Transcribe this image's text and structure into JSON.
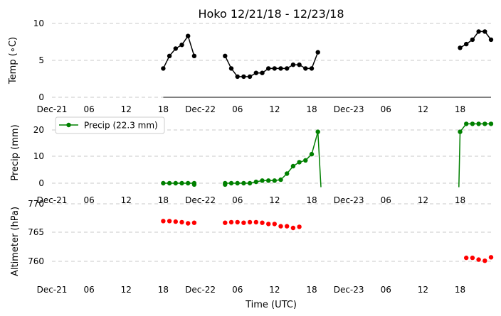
{
  "chart_data": {
    "type": "line",
    "title": "Hoko 12/21/18 - 12/23/18",
    "xlabel": "Time (UTC)",
    "x_tick_labels": [
      "Dec-21",
      "06",
      "12",
      "18",
      "Dec-22",
      "06",
      "12",
      "18",
      "Dec-23",
      "06",
      "12",
      "18"
    ],
    "xlim_hours": [
      0,
      71
    ],
    "grid": "horizontal dashed",
    "panels": [
      {
        "ylabel": "Temp (∘C)",
        "ylim": [
          0,
          10
        ],
        "yticks": [
          "0",
          "5",
          "10"
        ],
        "series": [
          {
            "color": "#000000",
            "segments": [
              [
                [
                  18,
                  3.9
                ],
                [
                  19,
                  5.6
                ],
                [
                  20,
                  6.6
                ],
                [
                  21,
                  7.1
                ],
                [
                  22,
                  8.3
                ],
                [
                  23,
                  5.6
                ]
              ],
              [
                [
                  28,
                  5.6
                ],
                [
                  29,
                  3.9
                ],
                [
                  30,
                  2.8
                ],
                [
                  31,
                  2.8
                ],
                [
                  32,
                  2.8
                ],
                [
                  33,
                  3.3
                ],
                [
                  34,
                  3.3
                ],
                [
                  35,
                  3.9
                ],
                [
                  36,
                  3.9
                ],
                [
                  37,
                  3.9
                ],
                [
                  38,
                  3.9
                ],
                [
                  39,
                  4.4
                ],
                [
                  40,
                  4.4
                ],
                [
                  41,
                  3.9
                ],
                [
                  42,
                  3.9
                ],
                [
                  43,
                  6.1
                ]
              ],
              [
                [
                  66,
                  6.7
                ],
                [
                  67,
                  7.2
                ],
                [
                  68,
                  7.8
                ],
                [
                  69,
                  8.9
                ],
                [
                  70,
                  8.9
                ],
                [
                  71,
                  7.8
                ]
              ]
            ]
          }
        ]
      },
      {
        "ylabel": "Precip (mm)",
        "ylim": [
          -1,
          25
        ],
        "yticks": [
          "0",
          "10",
          "20"
        ],
        "legend": "Precip (22.3 mm)",
        "legend_position": "upper-left",
        "series": [
          {
            "name": "Precip (22.3 mm)",
            "color": "#008000",
            "segments": [
              [
                [
                  18,
                  0.0
                ],
                [
                  19,
                  0.0
                ],
                [
                  20,
                  0.0
                ],
                [
                  21,
                  0.0
                ],
                [
                  22,
                  0.0
                ],
                [
                  23,
                  0.0
                ],
                [
                  23,
                  -0.5
                ]
              ],
              [
                [
                  28,
                  -0.5
                ],
                [
                  28,
                  0.0
                ],
                [
                  29,
                  0.0
                ],
                [
                  30,
                  0.0
                ],
                [
                  31,
                  0.0
                ],
                [
                  32,
                  0.0
                ],
                [
                  33,
                  0.5
                ],
                [
                  34,
                  1.0
                ],
                [
                  35,
                  1.0
                ],
                [
                  36,
                  1.0
                ],
                [
                  37,
                  1.3
                ],
                [
                  38,
                  3.6
                ],
                [
                  39,
                  6.4
                ],
                [
                  40,
                  7.9
                ],
                [
                  41,
                  8.6
                ],
                [
                  42,
                  10.9
                ],
                [
                  43,
                  19.3
                ],
                [
                  43.5,
                  -1.5
                ]
              ],
              [
                [
                  65.8,
                  -1.5
                ],
                [
                  66,
                  19.3
                ],
                [
                  67,
                  22.3
                ],
                [
                  68,
                  22.3
                ],
                [
                  69,
                  22.3
                ],
                [
                  70,
                  22.3
                ],
                [
                  71,
                  22.3
                ]
              ]
            ]
          }
        ]
      },
      {
        "ylabel": "Altimeter (hPa)",
        "ylim": [
          756,
          770
        ],
        "yticks": [
          "760",
          "765",
          "770"
        ],
        "series": [
          {
            "color": "#ff0000",
            "markers_only": true,
            "segments": [
              [
                [
                  18,
                  767.0
                ],
                [
                  19,
                  767.0
                ],
                [
                  20,
                  766.9
                ],
                [
                  21,
                  766.8
                ],
                [
                  22,
                  766.6
                ],
                [
                  23,
                  766.7
                ]
              ],
              [
                [
                  28,
                  766.7
                ],
                [
                  29,
                  766.8
                ],
                [
                  30,
                  766.8
                ],
                [
                  31,
                  766.7
                ],
                [
                  32,
                  766.8
                ],
                [
                  33,
                  766.8
                ],
                [
                  34,
                  766.7
                ],
                [
                  35,
                  766.5
                ],
                [
                  36,
                  766.5
                ],
                [
                  37,
                  766.1
                ],
                [
                  38,
                  766.1
                ],
                [
                  39,
                  765.8
                ],
                [
                  40,
                  766.0
                ]
              ],
              [
                [
                  67,
                  760.6
                ],
                [
                  68,
                  760.6
                ],
                [
                  69,
                  760.3
                ],
                [
                  70,
                  760.1
                ],
                [
                  71,
                  760.7
                ]
              ]
            ]
          }
        ]
      }
    ]
  }
}
